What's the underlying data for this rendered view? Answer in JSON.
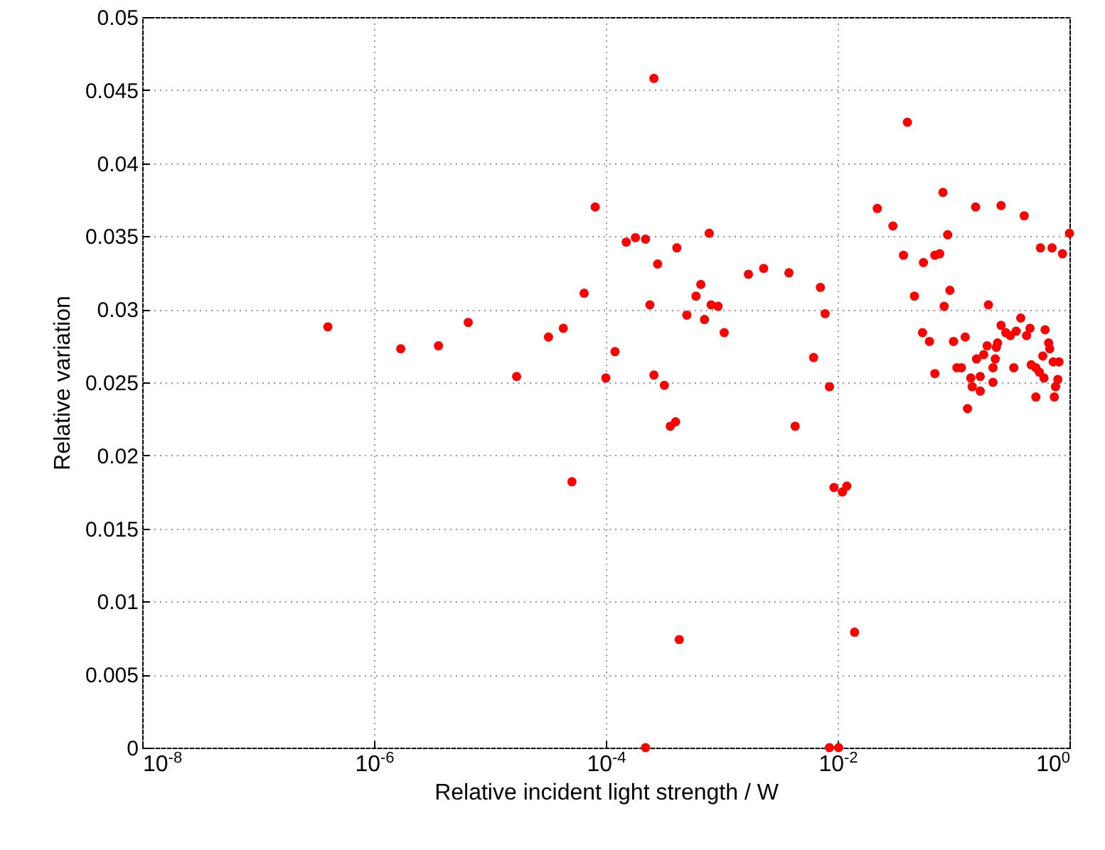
{
  "chart_data": {
    "type": "scatter",
    "xlabel": "Relative incident light strength / W",
    "ylabel": "Relative variation",
    "log": "x",
    "grid": true,
    "marker": "circle",
    "xlim": [
      1e-08,
      1
    ],
    "ylim": [
      0,
      0.05
    ],
    "xticks": [
      {
        "value": 1e-08,
        "label": "10$^{-8}$"
      },
      {
        "value": 1e-06,
        "label": "10$^{-6}$"
      },
      {
        "value": 0.0001,
        "label": "10$^{-4}$"
      },
      {
        "value": 0.01,
        "label": "10$^{-2}$"
      },
      {
        "value": 1,
        "label": "10$^{0}$"
      }
    ],
    "yticks": [
      0,
      0.005,
      0.01,
      0.015,
      0.02,
      0.025,
      0.03,
      0.035,
      0.04,
      0.045,
      0.05
    ],
    "series": [
      {
        "color": "#ff0000",
        "x": [
          4e-07,
          1.7e-06,
          3.6e-06,
          6.5e-06,
          1.7e-05,
          3.2e-05,
          4.3e-05,
          5.1e-05,
          6.5e-05,
          8.1e-05,
          0.0001,
          0.00012,
          0.00015,
          0.00018,
          0.00022,
          0.00024,
          0.00026,
          0.00022,
          0.00026,
          0.00028,
          0.00032,
          0.00036,
          0.0004,
          0.00041,
          0.00043,
          0.00078,
          0.00066,
          0.0006,
          0.0005,
          0.00071,
          0.00081,
          0.00093,
          0.00105,
          0.0017,
          0.0023,
          0.0038,
          0.0043,
          0.0062,
          0.0071,
          0.0078,
          0.0085,
          0.0085,
          0.0102,
          0.0093,
          0.011,
          0.012,
          0.014,
          0.022,
          0.03,
          0.04,
          0.037,
          0.046,
          0.055,
          0.069,
          0.076,
          0.081,
          0.089,
          0.093,
          0.083,
          0.054,
          0.062,
          0.069,
          0.1,
          0.126,
          0.107,
          0.117,
          0.132,
          0.141,
          0.145,
          0.155,
          0.158,
          0.17,
          0.17,
          0.182,
          0.195,
          0.2,
          0.219,
          0.219,
          0.229,
          0.234,
          0.24,
          0.257,
          0.257,
          0.282,
          0.309,
          0.331,
          0.347,
          0.38,
          0.407,
          0.427,
          0.457,
          0.468,
          0.513,
          0.55,
          0.513,
          0.562,
          0.589,
          0.603,
          0.617,
          0.661,
          0.676,
          0.708,
          0.724,
          0.813,
          0.759,
          0.741,
          0.794,
          0.871,
          1
        ],
        "values": [
          0.0288,
          0.0273,
          0.0275,
          0.0291,
          0.0254,
          0.0281,
          0.0287,
          0.0182,
          0.0311,
          0.037,
          0.0253,
          0.0271,
          0.0346,
          0.0349,
          0.0348,
          0.0303,
          0.0458,
          0,
          0.0255,
          0.0331,
          0.0248,
          0.022,
          0.0223,
          0.0342,
          0.0074,
          0.0352,
          0.0317,
          0.0309,
          0.0296,
          0.0293,
          0.0303,
          0.0302,
          0.0284,
          0.0324,
          0.0328,
          0.0325,
          0.022,
          0.0267,
          0.0315,
          0.0297,
          0.0247,
          0,
          0,
          0.0178,
          0.0175,
          0.0179,
          0.0079,
          0.0369,
          0.0357,
          0.0428,
          0.0337,
          0.0309,
          0.0332,
          0.0337,
          0.0338,
          0.038,
          0.0351,
          0.0313,
          0.0302,
          0.0284,
          0.0278,
          0.0256,
          0.0278,
          0.0281,
          0.026,
          0.026,
          0.0232,
          0.0253,
          0.0247,
          0.037,
          0.0266,
          0.0254,
          0.0244,
          0.0269,
          0.0275,
          0.0303,
          0.026,
          0.025,
          0.0266,
          0.0274,
          0.0277,
          0.0371,
          0.0289,
          0.0284,
          0.0282,
          0.026,
          0.0285,
          0.0294,
          0.0364,
          0.0282,
          0.0287,
          0.0262,
          0.026,
          0.0257,
          0.024,
          0.0342,
          0.0268,
          0.0253,
          0.0286,
          0.0277,
          0.0273,
          0.0342,
          0.0264,
          0.0264,
          0.0247,
          0.024,
          0.0252,
          0.0338,
          0.0352
        ]
      }
    ]
  }
}
